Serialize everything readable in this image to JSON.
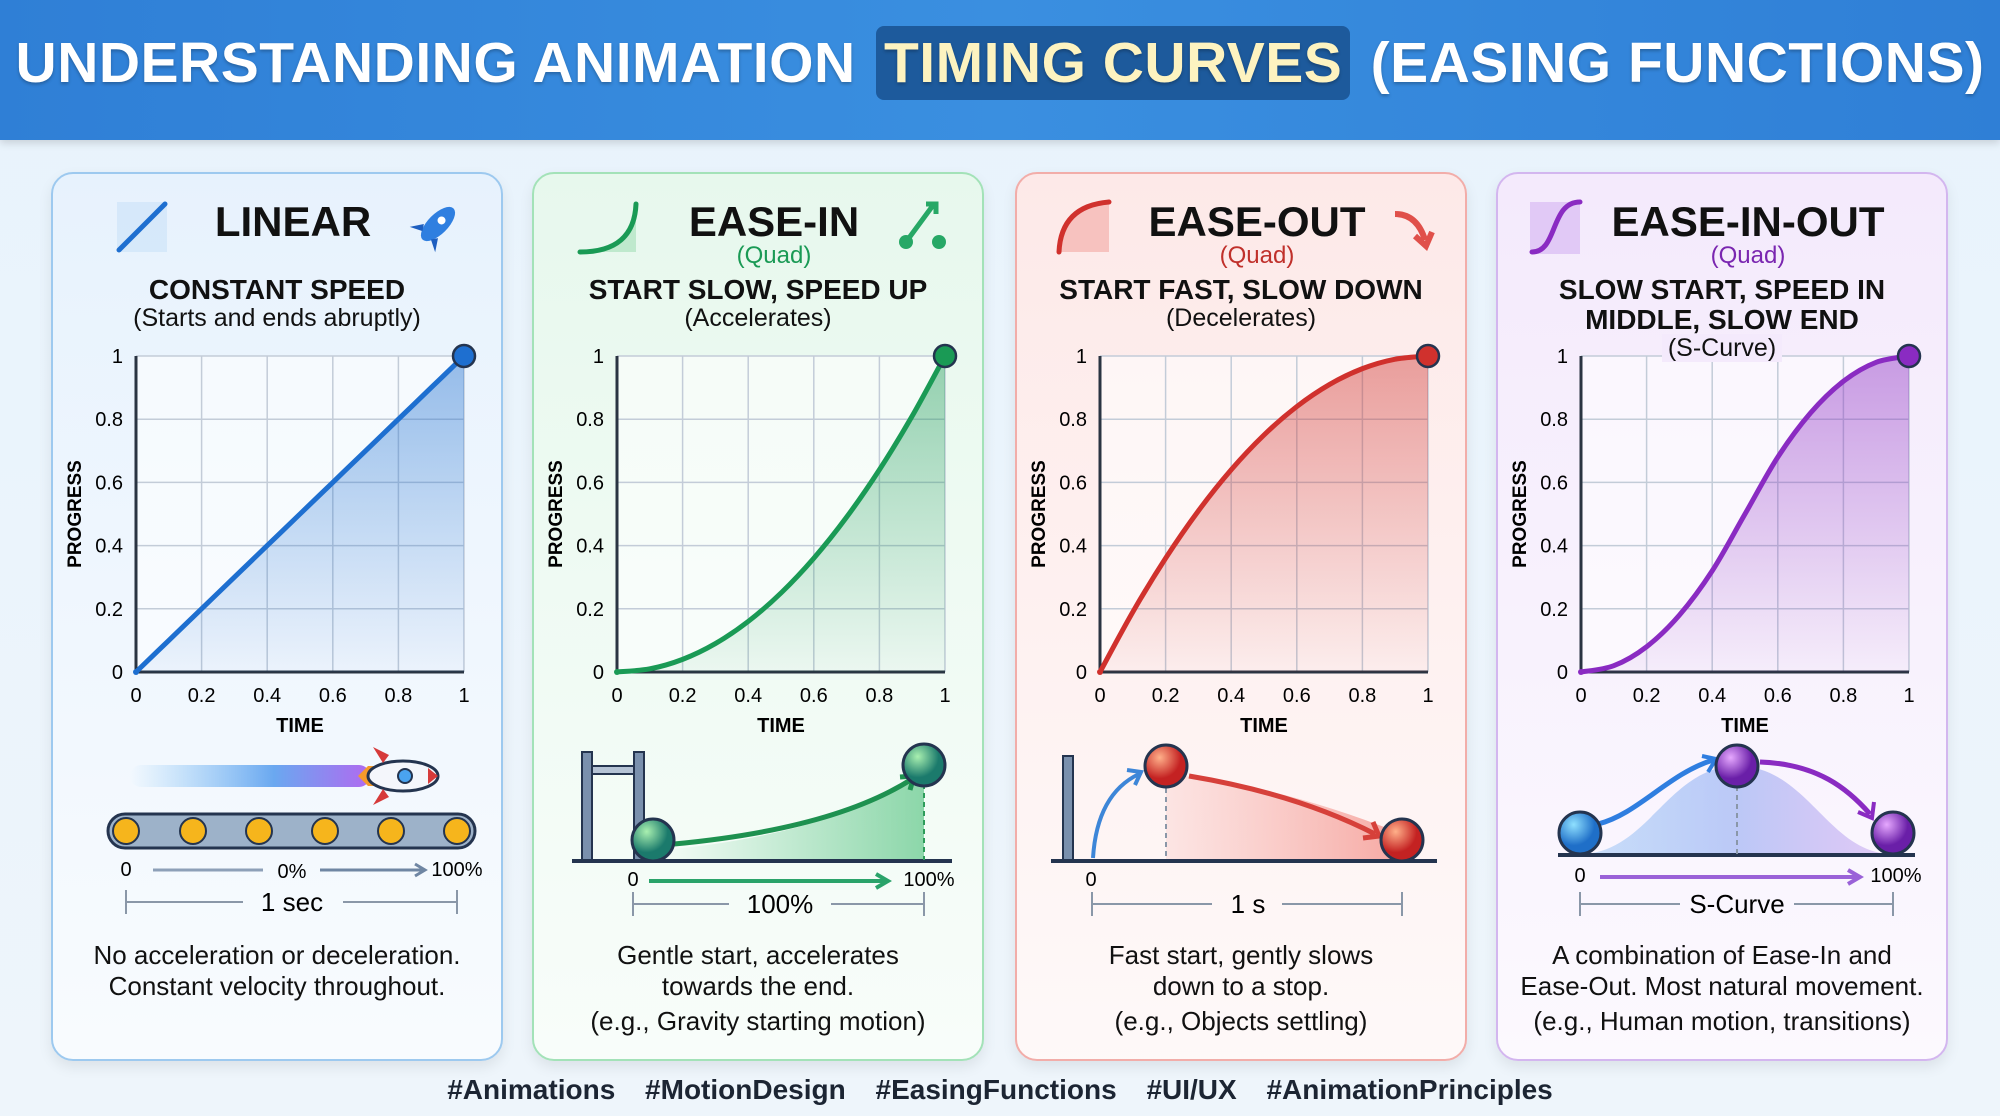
{
  "header": {
    "title_pre": "UNDERSTANDING ANIMATION",
    "title_highlight": "TIMING CURVES",
    "title_post": "(EASING FUNCTIONS)"
  },
  "cards": [
    {
      "title": "LINEAR",
      "variant": "",
      "heading": [
        "CONSTANT SPEED"
      ],
      "subheading": "(Starts and ends abruptly)",
      "description": [
        "No acceleration or deceleration.",
        "Constant velocity throughout."
      ],
      "illustration": {
        "start": "0",
        "mid": "0%",
        "end": "100%",
        "duration": "1 sec"
      },
      "color": "#1e6fd0",
      "bg": "#e7f2fd",
      "border": "#9dc9ef",
      "title_icon": "linear-line-icon",
      "side_icon": "rocket-icon"
    },
    {
      "title": "EASE-IN",
      "variant": "(Quad)",
      "heading": [
        "START SLOW, SPEED UP"
      ],
      "subheading": "(Accelerates)",
      "description": [
        "Gentle start, accelerates",
        "towards the end.",
        "(e.g., Gravity starting motion)"
      ],
      "illustration": {
        "start": "0",
        "end": "100%",
        "duration": "100%"
      },
      "color": "#1a9a55",
      "bg": "#e7f8ed",
      "border": "#a3e2b8",
      "title_icon": "ease-in-curve-icon",
      "side_icon": "accelerate-arrow-icon"
    },
    {
      "title": "EASE-OUT",
      "variant": "(Quad)",
      "heading": [
        "START FAST, SLOW DOWN"
      ],
      "subheading": "(Decelerates)",
      "description": [
        "Fast start, gently slows",
        "down to a stop.",
        "(e.g., Objects settling)"
      ],
      "illustration": {
        "start": "0",
        "duration": "1 s"
      },
      "color": "#d0312d",
      "bg": "#fde9e8",
      "border": "#f2ada9",
      "title_icon": "ease-out-curve-icon",
      "side_icon": "curved-arrow-down-icon"
    },
    {
      "title": "EASE-IN-OUT",
      "variant": "(Quad)",
      "heading": [
        "SLOW START, SPEED IN",
        "MIDDLE, SLOW END"
      ],
      "subheading": "(S-Curve)",
      "description": [
        "A combination of Ease-In and",
        "Ease-Out. Most natural movement.",
        "(e.g., Human motion, transitions)"
      ],
      "illustration": {
        "start": "0",
        "end": "100%",
        "duration": "S-Curve"
      },
      "color": "#8a2bc2",
      "bg": "#f4eafc",
      "border": "#d3b6ef",
      "title_icon": "s-curve-icon",
      "side_icon": ""
    }
  ],
  "chart_data": [
    {
      "type": "line",
      "title": "LINEAR",
      "xlabel": "TIME",
      "ylabel": "PROGRESS",
      "xlim": [
        0,
        1
      ],
      "ylim": [
        0,
        1
      ],
      "grid": true,
      "xticks": [
        "0",
        "0.2",
        "0.4",
        "0.6",
        "0.8",
        "1"
      ],
      "yticks": [
        "0",
        "0.2",
        "0.4",
        "0.6",
        "0.8",
        "1"
      ],
      "x": [
        0,
        0.1,
        0.2,
        0.3,
        0.4,
        0.5,
        0.6,
        0.7,
        0.8,
        0.9,
        1
      ],
      "y": [
        0,
        0.1,
        0.2,
        0.3,
        0.4,
        0.5,
        0.6,
        0.7,
        0.8,
        0.9,
        1
      ]
    },
    {
      "type": "line",
      "title": "EASE-IN",
      "xlabel": "TIME",
      "ylabel": "PROGRESS",
      "xlim": [
        0,
        1
      ],
      "ylim": [
        0,
        1
      ],
      "grid": true,
      "xticks": [
        "0",
        "0.2",
        "0.4",
        "0.6",
        "0.8",
        "1"
      ],
      "yticks": [
        "0",
        "0.2",
        "0.4",
        "0.6",
        "0.8",
        "1"
      ],
      "x": [
        0,
        0.1,
        0.2,
        0.3,
        0.4,
        0.5,
        0.6,
        0.7,
        0.8,
        0.9,
        1
      ],
      "y": [
        0,
        0.01,
        0.04,
        0.09,
        0.16,
        0.25,
        0.36,
        0.49,
        0.64,
        0.81,
        1
      ]
    },
    {
      "type": "line",
      "title": "EASE-OUT",
      "xlabel": "TIME",
      "ylabel": "PROGRESS",
      "xlim": [
        0,
        1
      ],
      "ylim": [
        0,
        1
      ],
      "grid": true,
      "xticks": [
        "0",
        "0.2",
        "0.4",
        "0.6",
        "0.8",
        "1"
      ],
      "yticks": [
        "0",
        "0.2",
        "0.4",
        "0.6",
        "0.8",
        "1"
      ],
      "x": [
        0,
        0.1,
        0.2,
        0.3,
        0.4,
        0.5,
        0.6,
        0.7,
        0.8,
        0.9,
        1
      ],
      "y": [
        0,
        0.19,
        0.36,
        0.51,
        0.64,
        0.75,
        0.84,
        0.91,
        0.96,
        0.99,
        1
      ]
    },
    {
      "type": "line",
      "title": "EASE-IN-OUT",
      "xlabel": "TIME",
      "ylabel": "PROGRESS",
      "xlim": [
        0,
        1
      ],
      "ylim": [
        0,
        1
      ],
      "grid": true,
      "xticks": [
        "0",
        "0.2",
        "0.4",
        "0.6",
        "0.8",
        "1"
      ],
      "yticks": [
        "0",
        "0.2",
        "0.4",
        "0.6",
        "0.8",
        "1"
      ],
      "x": [
        0,
        0.1,
        0.2,
        0.3,
        0.4,
        0.5,
        0.6,
        0.7,
        0.8,
        0.9,
        1
      ],
      "y": [
        0,
        0.02,
        0.08,
        0.18,
        0.32,
        0.5,
        0.68,
        0.82,
        0.92,
        0.98,
        1
      ]
    }
  ],
  "hashtags": [
    "#Animations",
    "#MotionDesign",
    "#EasingFunctions",
    "#UI/UX",
    "#AnimationPrinciples"
  ]
}
